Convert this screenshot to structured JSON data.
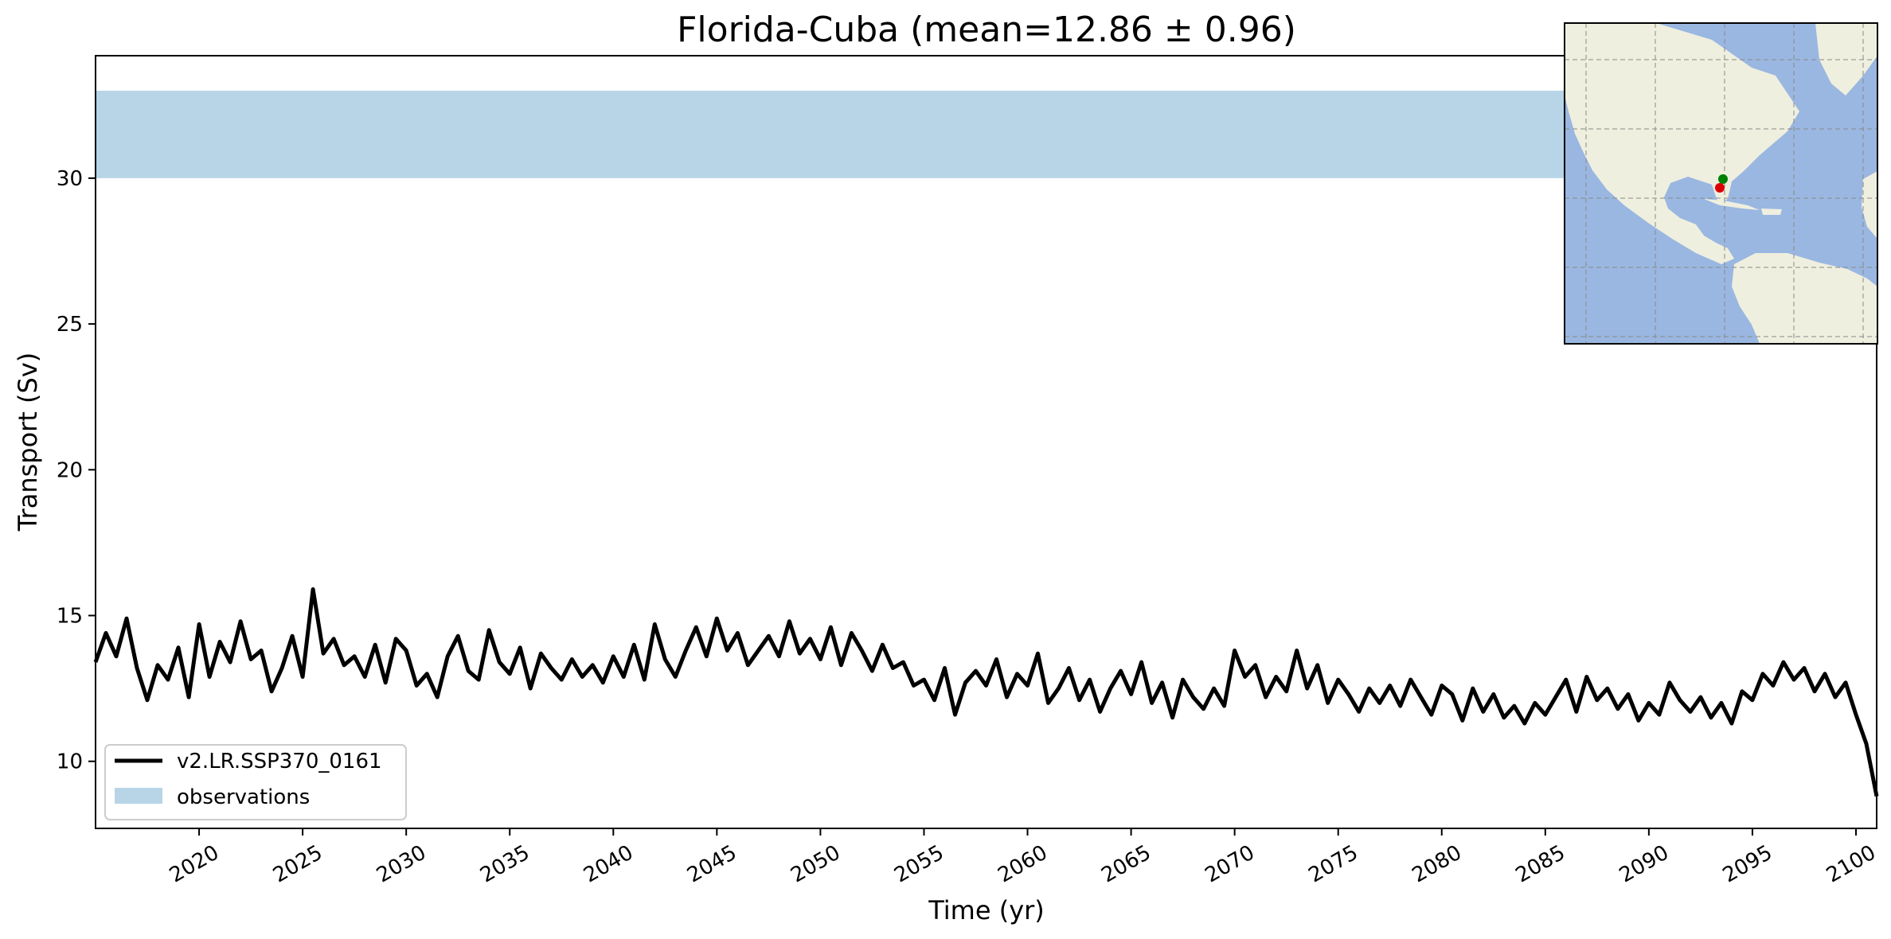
{
  "chart_data": {
    "type": "line",
    "title": "Florida-Cuba (mean=12.86 ± 0.96)",
    "xlabel": "Time (yr)",
    "ylabel": "Transport (Sv)",
    "xlim": [
      2015.0,
      2101.0
    ],
    "ylim": [
      7.7,
      34.2
    ],
    "xticks": [
      2020,
      2025,
      2030,
      2035,
      2040,
      2045,
      2050,
      2055,
      2060,
      2065,
      2070,
      2075,
      2080,
      2085,
      2090,
      2095,
      2100
    ],
    "xtick_labels": [
      "2020",
      "2025",
      "2030",
      "2035",
      "2040",
      "2045",
      "2050",
      "2055",
      "2060",
      "2065",
      "2070",
      "2075",
      "2080",
      "2085",
      "2090",
      "2095",
      "2100"
    ],
    "yticks": [
      10,
      15,
      20,
      25,
      30
    ],
    "ytick_labels": [
      "10",
      "15",
      "20",
      "25",
      "30"
    ],
    "grid": false,
    "legend_position": "lower-left",
    "series": [
      {
        "name": "v2.LR.SSP370_0161",
        "color": "#000000",
        "x": [
          2015.0,
          2015.5,
          2016.0,
          2016.5,
          2017.0,
          2017.5,
          2018.0,
          2018.5,
          2019.0,
          2019.5,
          2020.0,
          2020.5,
          2021.0,
          2021.5,
          2022.0,
          2022.5,
          2023.0,
          2023.5,
          2024.0,
          2024.5,
          2025.0,
          2025.5,
          2026.0,
          2026.5,
          2027.0,
          2027.5,
          2028.0,
          2028.5,
          2029.0,
          2029.5,
          2030.0,
          2030.5,
          2031.0,
          2031.5,
          2032.0,
          2032.5,
          2033.0,
          2033.5,
          2034.0,
          2034.5,
          2035.0,
          2035.5,
          2036.0,
          2036.5,
          2037.0,
          2037.5,
          2038.0,
          2038.5,
          2039.0,
          2039.5,
          2040.0,
          2040.5,
          2041.0,
          2041.5,
          2042.0,
          2042.5,
          2043.0,
          2043.5,
          2044.0,
          2044.5,
          2045.0,
          2045.5,
          2046.0,
          2046.5,
          2047.0,
          2047.5,
          2048.0,
          2048.5,
          2049.0,
          2049.5,
          2050.0,
          2050.5,
          2051.0,
          2051.5,
          2052.0,
          2052.5,
          2053.0,
          2053.5,
          2054.0,
          2054.5,
          2055.0,
          2055.5,
          2056.0,
          2056.5,
          2057.0,
          2057.5,
          2058.0,
          2058.5,
          2059.0,
          2059.5,
          2060.0,
          2060.5,
          2061.0,
          2061.5,
          2062.0,
          2062.5,
          2063.0,
          2063.5,
          2064.0,
          2064.5,
          2065.0,
          2065.5,
          2066.0,
          2066.5,
          2067.0,
          2067.5,
          2068.0,
          2068.5,
          2069.0,
          2069.5,
          2070.0,
          2070.5,
          2071.0,
          2071.5,
          2072.0,
          2072.5,
          2073.0,
          2073.5,
          2074.0,
          2074.5,
          2075.0,
          2075.5,
          2076.0,
          2076.5,
          2077.0,
          2077.5,
          2078.0,
          2078.5,
          2079.0,
          2079.5,
          2080.0,
          2080.5,
          2081.0,
          2081.5,
          2082.0,
          2082.5,
          2083.0,
          2083.5,
          2084.0,
          2084.5,
          2085.0,
          2085.5,
          2086.0,
          2086.5,
          2087.0,
          2087.5,
          2088.0,
          2088.5,
          2089.0,
          2089.5,
          2090.0,
          2090.5,
          2091.0,
          2091.5,
          2092.0,
          2092.5,
          2093.0,
          2093.5,
          2094.0,
          2094.5,
          2095.0,
          2095.5,
          2096.0,
          2096.5,
          2097.0,
          2097.5,
          2098.0,
          2098.5,
          2099.0,
          2099.5,
          2100.0,
          2100.5,
          2101.0
        ],
        "y": [
          13.4,
          14.4,
          13.6,
          14.9,
          13.2,
          12.1,
          13.3,
          12.8,
          13.9,
          12.2,
          14.7,
          12.9,
          14.1,
          13.4,
          14.8,
          13.5,
          13.8,
          12.4,
          13.2,
          14.3,
          12.9,
          15.9,
          13.7,
          14.2,
          13.3,
          13.6,
          12.9,
          14.0,
          12.7,
          14.2,
          13.8,
          12.6,
          13.0,
          12.2,
          13.6,
          14.3,
          13.1,
          12.8,
          14.5,
          13.4,
          13.0,
          13.9,
          12.5,
          13.7,
          13.2,
          12.8,
          13.5,
          12.9,
          13.3,
          12.7,
          13.6,
          12.9,
          14.0,
          12.8,
          14.7,
          13.5,
          12.9,
          13.8,
          14.6,
          13.6,
          14.9,
          13.8,
          14.4,
          13.3,
          13.8,
          14.3,
          13.6,
          14.8,
          13.7,
          14.2,
          13.5,
          14.6,
          13.3,
          14.4,
          13.8,
          13.1,
          14.0,
          13.2,
          13.4,
          12.6,
          12.8,
          12.1,
          13.2,
          11.6,
          12.7,
          13.1,
          12.6,
          13.5,
          12.2,
          13.0,
          12.6,
          13.7,
          12.0,
          12.5,
          13.2,
          12.1,
          12.8,
          11.7,
          12.5,
          13.1,
          12.3,
          13.4,
          12.0,
          12.7,
          11.5,
          12.8,
          12.2,
          11.8,
          12.5,
          11.9,
          13.8,
          12.9,
          13.3,
          12.2,
          12.9,
          12.4,
          13.8,
          12.5,
          13.3,
          12.0,
          12.8,
          12.3,
          11.7,
          12.5,
          12.0,
          12.6,
          11.9,
          12.8,
          12.2,
          11.6,
          12.6,
          12.3,
          11.4,
          12.5,
          11.7,
          12.3,
          11.5,
          11.9,
          11.3,
          12.0,
          11.6,
          12.2,
          12.8,
          11.7,
          12.9,
          12.1,
          12.5,
          11.8,
          12.3,
          11.4,
          12.0,
          11.6,
          12.7,
          12.1,
          11.7,
          12.2,
          11.5,
          12.0,
          11.3,
          12.4,
          12.1,
          13.0,
          12.6,
          13.4,
          12.8,
          13.2,
          12.4,
          13.0,
          12.2,
          12.7,
          11.6,
          10.6,
          8.8
        ]
      }
    ],
    "observations": {
      "name": "observations",
      "range": [
        30.0,
        33.0
      ],
      "color": "#b8d5e8"
    },
    "inset_map": {
      "ocean_color": "#9ab7e1",
      "land_color": "#efefdf",
      "markers": [
        {
          "color": "#008000"
        },
        {
          "color": "#dd0000"
        }
      ]
    }
  }
}
